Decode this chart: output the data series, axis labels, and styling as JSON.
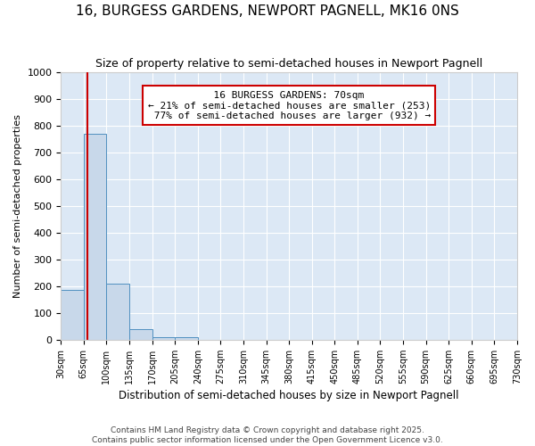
{
  "title": "16, BURGESS GARDENS, NEWPORT PAGNELL, MK16 0NS",
  "subtitle": "Size of property relative to semi-detached houses in Newport Pagnell",
  "xlabel": "Distribution of semi-detached houses by size in Newport Pagnell",
  "ylabel": "Number of semi-detached properties",
  "property_size": 70,
  "property_label": "16 BURGESS GARDENS: 70sqm",
  "pct_smaller": 21,
  "pct_larger": 77,
  "n_smaller": 253,
  "n_larger": 932,
  "bin_edges": [
    30,
    65,
    100,
    135,
    170,
    205,
    240,
    275,
    310,
    345,
    380,
    415,
    450,
    485,
    520,
    555,
    590,
    625,
    660,
    695,
    730
  ],
  "bar_heights": [
    185,
    770,
    210,
    40,
    10,
    10,
    0,
    0,
    0,
    0,
    0,
    0,
    0,
    0,
    0,
    0,
    0,
    0,
    0,
    0
  ],
  "bar_color": "#c8d8ea",
  "bar_edge_color": "#5090c0",
  "vline_color": "#cc0000",
  "annotation_box_color": "#cc0000",
  "plot_bg_color": "#dce8f5",
  "fig_bg_color": "#ffffff",
  "grid_color": "#ffffff",
  "footer_text": "Contains HM Land Registry data © Crown copyright and database right 2025.\nContains public sector information licensed under the Open Government Licence v3.0.",
  "ylim": [
    0,
    1000
  ],
  "yticks": [
    0,
    100,
    200,
    300,
    400,
    500,
    600,
    700,
    800,
    900,
    1000
  ]
}
